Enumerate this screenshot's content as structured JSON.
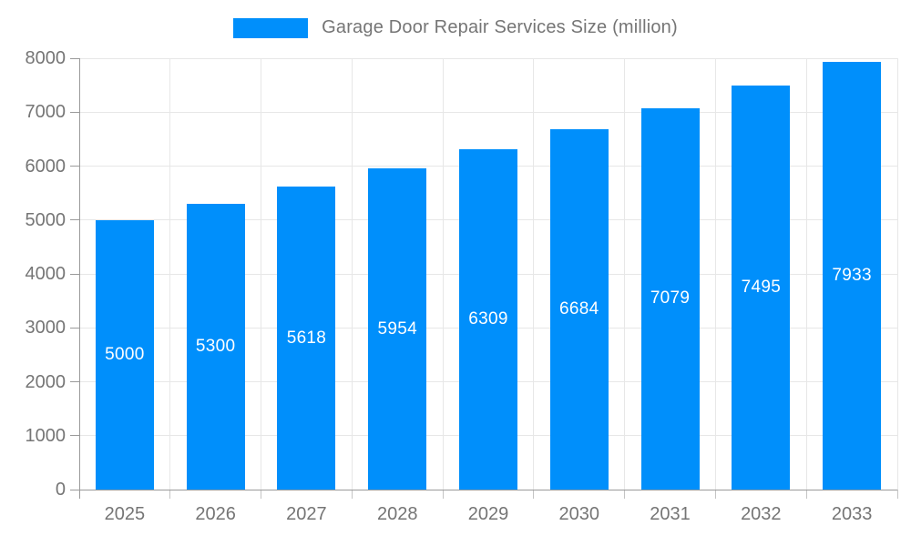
{
  "chart_data": {
    "type": "bar",
    "title": "Garage Door Repair Services Size (million)",
    "categories": [
      "2025",
      "2026",
      "2027",
      "2028",
      "2029",
      "2030",
      "2031",
      "2032",
      "2033"
    ],
    "values": [
      5000,
      5300,
      5618,
      5954,
      6309,
      6684,
      7079,
      7495,
      7933
    ],
    "value_labels": [
      "5000",
      "5300",
      "5618",
      "5954",
      "6309",
      "6684",
      "7079",
      "7495",
      "7933"
    ],
    "xlabel": "",
    "ylabel": "",
    "ylim": [
      0,
      8000
    ],
    "ytick_step": 1000,
    "yticks": [
      0,
      1000,
      2000,
      3000,
      4000,
      5000,
      6000,
      7000,
      8000
    ],
    "grid": true,
    "legend_position": "top-center",
    "legend_entries": [
      "Garage Door Repair Services Size (million)"
    ],
    "colors": {
      "bar": "#008FFB",
      "bar_value_text": "#ffffff",
      "axis_text": "#757575",
      "gridline": "#e7e7e7",
      "axis_line": "#9a9a9a",
      "background": "#ffffff"
    }
  }
}
